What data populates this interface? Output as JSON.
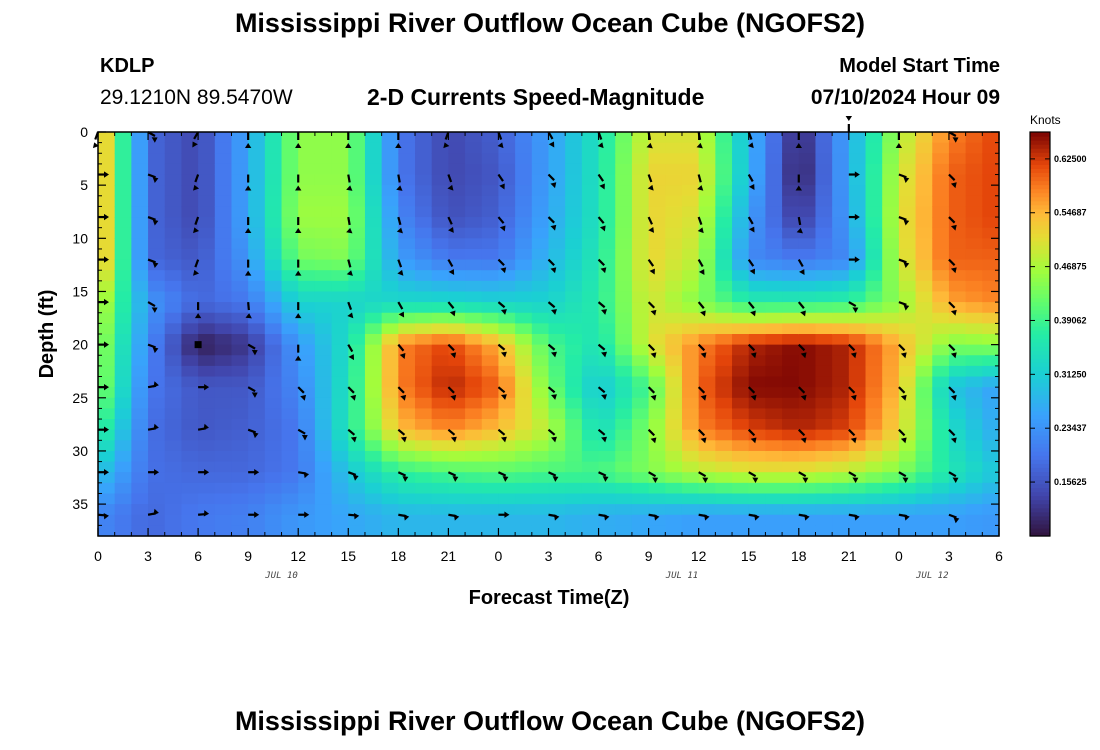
{
  "header": {
    "title": "Mississippi River Outflow Ocean Cube (NGOFS2)",
    "station_id": "KDLP",
    "station_coords": "29.1210N  89.5470W",
    "variable_title": "2-D Currents Speed-Magnitude",
    "model_start_label": "Model Start Time",
    "model_start_value": "07/10/2024 Hour 09"
  },
  "footer": {
    "title": "Mississippi River Outflow Ocean Cube (NGOFS2)"
  },
  "chart_data": {
    "type": "heatmap",
    "xlabel": "Forecast Time(Z)",
    "ylabel": "Depth (ft)",
    "x_tick_labels": [
      "0",
      "3",
      "6",
      "9",
      "12",
      "15",
      "18",
      "21",
      "0",
      "3",
      "6",
      "9",
      "12",
      "15",
      "18",
      "21",
      "0",
      "3",
      "6"
    ],
    "date_labels": [
      {
        "text": "JUL 10",
        "at_hour": 11
      },
      {
        "text": "JUL 11",
        "at_hour": 35
      },
      {
        "text": "JUL 12",
        "at_hour": 50
      }
    ],
    "xlim": [
      0,
      54
    ],
    "y_ticks": [
      0,
      5,
      10,
      15,
      20,
      25,
      30,
      35
    ],
    "ylim": [
      0,
      38
    ],
    "y_inverted": true,
    "colorbar": {
      "title": "Knots",
      "range": [
        0.078,
        0.664
      ],
      "tick_labels": [
        "0.15625",
        "0.23437",
        "0.31250",
        "0.39062",
        "0.46875",
        "0.54687",
        "0.62500"
      ],
      "tick_values": [
        0.15625,
        0.234375,
        0.3125,
        0.390625,
        0.46875,
        0.546875,
        0.625
      ]
    },
    "cell_hours": [
      0,
      3,
      6,
      9,
      12,
      15,
      18,
      21,
      24,
      27,
      30,
      33,
      36,
      39,
      42,
      45,
      48,
      51,
      54
    ],
    "cell_depths": [
      0,
      4,
      8,
      12,
      16,
      20,
      24,
      28,
      32,
      36
    ],
    "speed": [
      [
        0.58,
        0.18,
        0.14,
        0.26,
        0.45,
        0.45,
        0.2,
        0.14,
        0.17,
        0.25,
        0.35,
        0.5,
        0.5,
        0.28,
        0.1,
        0.26,
        0.47,
        0.58,
        0.62
      ],
      [
        0.58,
        0.18,
        0.14,
        0.26,
        0.45,
        0.45,
        0.2,
        0.14,
        0.16,
        0.25,
        0.35,
        0.52,
        0.52,
        0.28,
        0.09,
        0.26,
        0.49,
        0.6,
        0.62
      ],
      [
        0.58,
        0.18,
        0.14,
        0.26,
        0.46,
        0.46,
        0.22,
        0.15,
        0.17,
        0.26,
        0.35,
        0.52,
        0.5,
        0.25,
        0.12,
        0.25,
        0.5,
        0.6,
        0.62
      ],
      [
        0.58,
        0.18,
        0.16,
        0.24,
        0.43,
        0.44,
        0.25,
        0.2,
        0.2,
        0.28,
        0.36,
        0.52,
        0.48,
        0.22,
        0.2,
        0.22,
        0.49,
        0.6,
        0.6
      ],
      [
        0.5,
        0.24,
        0.18,
        0.2,
        0.32,
        0.32,
        0.33,
        0.33,
        0.32,
        0.32,
        0.37,
        0.5,
        0.44,
        0.37,
        0.37,
        0.38,
        0.45,
        0.56,
        0.58
      ],
      [
        0.47,
        0.22,
        0.09,
        0.12,
        0.24,
        0.34,
        0.58,
        0.62,
        0.55,
        0.4,
        0.35,
        0.5,
        0.58,
        0.64,
        0.66,
        0.64,
        0.55,
        0.44,
        0.45
      ],
      [
        0.46,
        0.2,
        0.16,
        0.16,
        0.22,
        0.35,
        0.58,
        0.64,
        0.6,
        0.43,
        0.3,
        0.4,
        0.6,
        0.66,
        0.66,
        0.64,
        0.54,
        0.3,
        0.25
      ],
      [
        0.4,
        0.19,
        0.16,
        0.17,
        0.2,
        0.36,
        0.54,
        0.58,
        0.54,
        0.48,
        0.34,
        0.44,
        0.58,
        0.62,
        0.64,
        0.62,
        0.52,
        0.34,
        0.26
      ],
      [
        0.3,
        0.19,
        0.18,
        0.18,
        0.2,
        0.3,
        0.38,
        0.4,
        0.41,
        0.4,
        0.4,
        0.44,
        0.48,
        0.5,
        0.5,
        0.48,
        0.44,
        0.36,
        0.3
      ],
      [
        0.22,
        0.18,
        0.2,
        0.21,
        0.24,
        0.26,
        0.28,
        0.28,
        0.28,
        0.28,
        0.27,
        0.26,
        0.25,
        0.25,
        0.25,
        0.25,
        0.25,
        0.25,
        0.24
      ]
    ],
    "vector_hours": [
      0,
      3,
      6,
      9,
      12,
      15,
      18,
      21,
      24,
      27,
      30,
      33,
      36,
      39,
      42,
      45,
      48,
      51
    ],
    "vector_depths": [
      0,
      4,
      8,
      12,
      16,
      20,
      24,
      28,
      32,
      36
    ],
    "vector_direction_deg": [
      [
        200,
        120,
        210,
        180,
        180,
        180,
        180,
        200,
        160,
        150,
        160,
        170,
        170,
        160,
        180,
        0,
        180,
        120
      ],
      [
        90,
        110,
        200,
        180,
        180,
        170,
        170,
        160,
        145,
        135,
        145,
        160,
        165,
        150,
        180,
        90,
        110,
        135
      ],
      [
        90,
        110,
        200,
        180,
        180,
        170,
        165,
        155,
        140,
        135,
        140,
        155,
        160,
        150,
        170,
        90,
        110,
        135
      ],
      [
        90,
        110,
        200,
        180,
        180,
        165,
        160,
        150,
        135,
        135,
        135,
        145,
        150,
        145,
        150,
        90,
        110,
        135
      ],
      [
        90,
        120,
        180,
        175,
        180,
        160,
        150,
        140,
        130,
        130,
        130,
        135,
        140,
        140,
        140,
        120,
        110,
        135
      ],
      [
        90,
        110,
        null,
        120,
        180,
        150,
        140,
        135,
        130,
        130,
        130,
        135,
        135,
        135,
        135,
        135,
        135,
        135
      ],
      [
        90,
        80,
        90,
        120,
        135,
        135,
        135,
        135,
        130,
        130,
        130,
        135,
        135,
        135,
        135,
        135,
        135,
        135
      ],
      [
        90,
        80,
        80,
        110,
        120,
        130,
        130,
        130,
        130,
        130,
        130,
        135,
        135,
        135,
        135,
        135,
        135,
        135
      ],
      [
        90,
        90,
        90,
        90,
        100,
        110,
        115,
        115,
        115,
        115,
        115,
        120,
        120,
        120,
        120,
        120,
        120,
        120
      ],
      [
        95,
        80,
        85,
        90,
        90,
        95,
        100,
        100,
        90,
        100,
        100,
        100,
        100,
        100,
        100,
        100,
        100,
        110
      ]
    ],
    "square_markers": [
      {
        "hour": 6,
        "depth": 20
      }
    ]
  }
}
